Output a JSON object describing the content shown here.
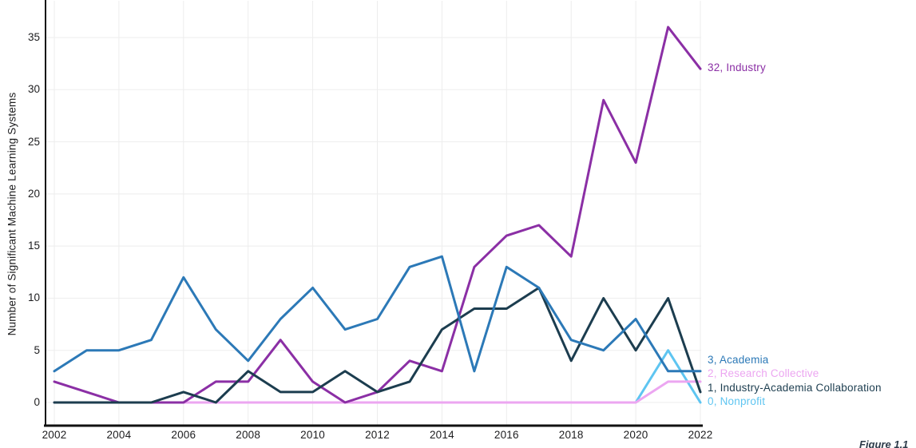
{
  "y_axis": {
    "title": "Number of Significant Machine Learning Systems",
    "ticks": [
      "0",
      "5",
      "10",
      "15",
      "20",
      "25",
      "30",
      "35"
    ]
  },
  "x_axis": {
    "ticks": [
      "2002",
      "2004",
      "2006",
      "2008",
      "2010",
      "2012",
      "2014",
      "2016",
      "2018",
      "2020",
      "2022"
    ]
  },
  "caption_fragment": "Figure 1.1",
  "colors": {
    "industry": "#8B2FA5",
    "academia": "#2C79B7",
    "industry_academia_collaboration": "#1C3D4F",
    "research_collective": "#ECA6F1",
    "nonprofit": "#5EC5F1",
    "axis": "#111111",
    "gridline": "#EDEDED",
    "tick_text": "#1d1d1f"
  },
  "chart_data": {
    "type": "line",
    "title": "",
    "xlabel": "",
    "ylabel": "Number of Significant Machine Learning Systems",
    "xlim": [
      2002,
      2022
    ],
    "ylim": [
      0,
      37
    ],
    "grid": true,
    "legend_position": "end-of-line-labels",
    "x": [
      2002,
      2003,
      2004,
      2005,
      2006,
      2007,
      2008,
      2009,
      2010,
      2011,
      2012,
      2013,
      2014,
      2015,
      2016,
      2017,
      2018,
      2019,
      2020,
      2021,
      2022
    ],
    "series": [
      {
        "name": "Nonprofit",
        "color": "#5EC5F1",
        "end_label": "0, Nonprofit",
        "end_value": 0,
        "values": [
          0,
          0,
          0,
          0,
          0,
          0,
          0,
          0,
          0,
          0,
          0,
          0,
          0,
          0,
          0,
          0,
          0,
          0,
          0,
          5,
          0
        ]
      },
      {
        "name": "Research Collective",
        "color": "#ECA6F1",
        "end_label": "2, Research Collective",
        "end_value": 2,
        "values": [
          0,
          0,
          0,
          0,
          0,
          0,
          0,
          0,
          0,
          0,
          0,
          0,
          0,
          0,
          0,
          0,
          0,
          0,
          0,
          2,
          2
        ]
      },
      {
        "name": "Industry",
        "color": "#8B2FA5",
        "end_label": "32, Industry",
        "end_value": 32,
        "values": [
          2,
          1,
          0,
          0,
          0,
          2,
          2,
          6,
          2,
          0,
          1,
          4,
          3,
          13,
          16,
          17,
          14,
          29,
          23,
          36,
          32
        ]
      },
      {
        "name": "Industry-Academia Collaboration",
        "color": "#1C3D4F",
        "end_label": "1, Industry-Academia Collaboration",
        "end_value": 1,
        "values": [
          0,
          0,
          0,
          0,
          1,
          0,
          3,
          1,
          1,
          3,
          1,
          2,
          7,
          9,
          9,
          11,
          4,
          10,
          5,
          10,
          1
        ]
      },
      {
        "name": "Academia",
        "color": "#2C79B7",
        "end_label": "3, Academia",
        "end_value": 3,
        "values": [
          3,
          5,
          5,
          6,
          12,
          7,
          4,
          8,
          11,
          7,
          8,
          13,
          14,
          3,
          13,
          11,
          6,
          5,
          8,
          3,
          3
        ]
      }
    ]
  }
}
